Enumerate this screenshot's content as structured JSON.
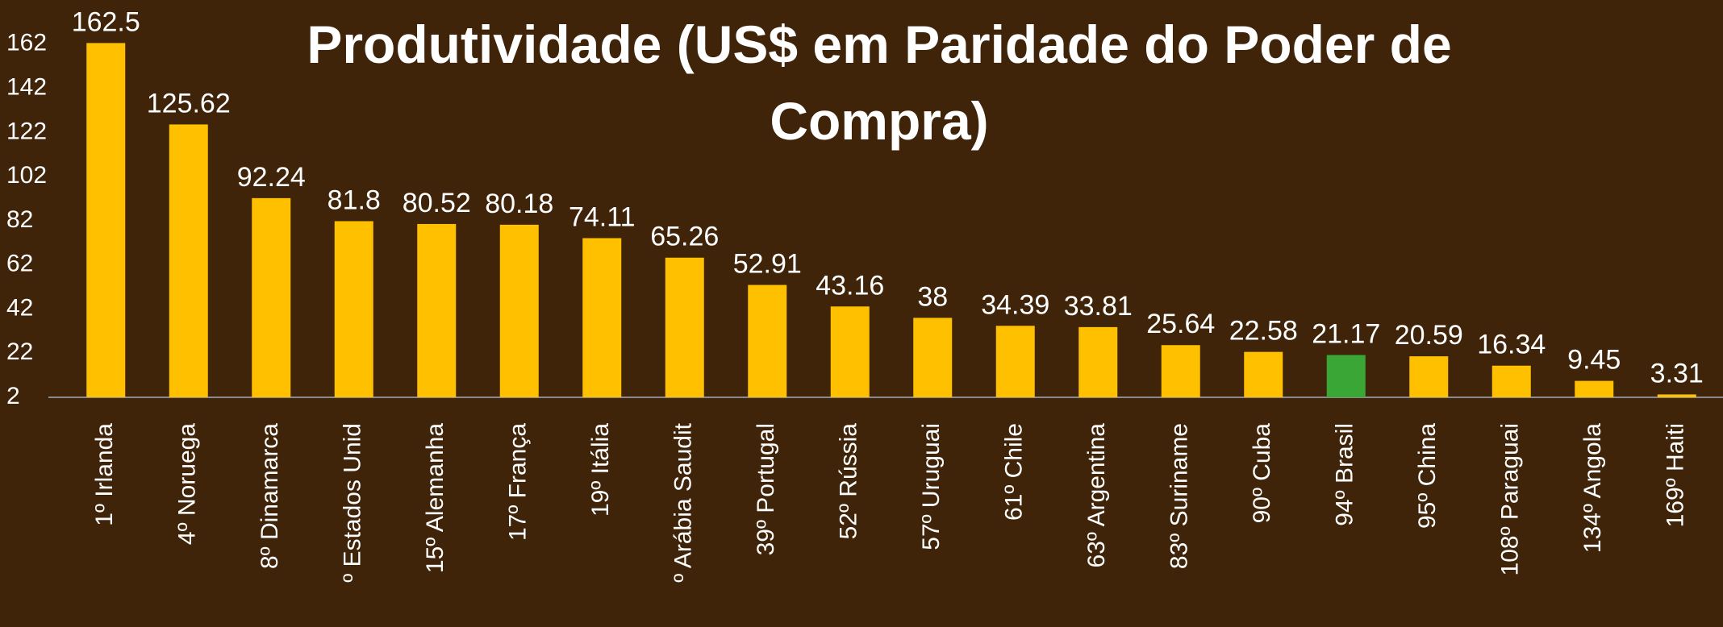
{
  "chart_data": {
    "type": "bar",
    "title": "Produtividade (US$ em Paridade do Poder de Compra)",
    "categories": [
      "1º Irlanda",
      "4º Noruega",
      "8º Dinamarca",
      "º Estados Unid",
      "15º Alemanha",
      "17º França",
      "19º Itália",
      "º Arábia Saudit",
      "39º Portugal",
      "52º Rússia",
      "57º Uruguai",
      "61º Chile",
      "63º Argentina",
      "83º Suriname",
      "90º Cuba",
      "94º Brasil",
      "95º China",
      "108º Paraguai",
      "134º Angola",
      "169º Haiti"
    ],
    "values": [
      162.5,
      125.62,
      92.24,
      81.8,
      80.52,
      80.18,
      74.11,
      65.26,
      52.91,
      43.16,
      38,
      34.39,
      33.81,
      25.64,
      22.58,
      21.17,
      20.59,
      16.34,
      9.45,
      3.31
    ],
    "colors": [
      "#ffc000",
      "#ffc000",
      "#ffc000",
      "#ffc000",
      "#ffc000",
      "#ffc000",
      "#ffc000",
      "#ffc000",
      "#ffc000",
      "#ffc000",
      "#ffc000",
      "#ffc000",
      "#ffc000",
      "#ffc000",
      "#ffc000",
      "#3aa635",
      "#ffc000",
      "#ffc000",
      "#ffc000",
      "#ffc000"
    ],
    "ylim": [
      2,
      182
    ],
    "yticks": [
      2,
      22,
      42,
      62,
      82,
      102,
      122,
      142,
      162
    ],
    "grid": false
  }
}
